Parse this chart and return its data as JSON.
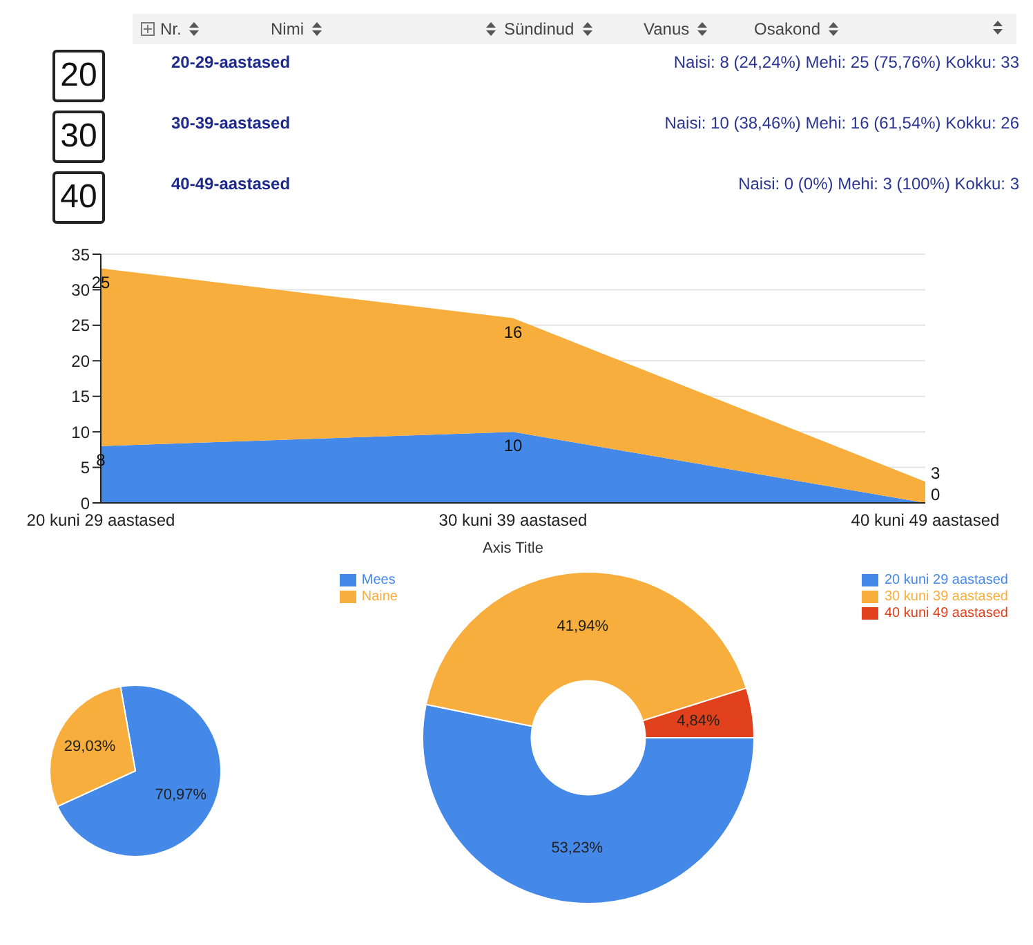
{
  "chart_data": [
    {
      "type": "other",
      "annotations": [
        "Nr.",
        "Nimi",
        "Sündinud",
        "Vanus",
        "Osakond",
        "20",
        "20-29-aastased",
        "Naisi: 8 (24,24%)  Mehi: 25 (75,76%)  Kokku: 33",
        "30",
        "30-39-aastased",
        "Naisi: 10 (38,46%)  Mehi: 16 (61,54%)  Kokku: 26",
        "40",
        "40-49-aastased",
        "Naisi: 0 (0%)  Mehi: 3 (100%)  Kokku: 3"
      ]
    },
    {
      "type": "area",
      "stacked": true,
      "categories": [
        "20 kuni 29 aastased",
        "30 kuni 39 aastased",
        "40 kuni 49 aastased"
      ],
      "xlabel": "Axis Title",
      "ylim": [
        0,
        35
      ],
      "yticks": [
        0,
        5,
        10,
        15,
        20,
        25,
        30,
        35
      ],
      "grid": "y",
      "data_labels": true,
      "series": [
        {
          "color": "#4488e8",
          "values": [
            8,
            10,
            0
          ]
        },
        {
          "color": "#f7ae3c",
          "values": [
            25,
            16,
            3
          ]
        }
      ]
    },
    {
      "type": "pie",
      "categories": [
        "Mees",
        "Naine"
      ],
      "values": [
        70.97,
        29.03
      ],
      "colors": [
        "#4488e8",
        "#f7ae3c"
      ],
      "value_labels": [
        "70,97%",
        "29,03%"
      ],
      "legend": "top right"
    },
    {
      "type": "donut",
      "categories": [
        "20 kuni 29 aastased",
        "30 kuni 39 aastased",
        "40 kuni 49 aastased"
      ],
      "values": [
        53.23,
        41.94,
        4.84
      ],
      "colors": [
        "#4488e8",
        "#f7ae3c",
        "#e0401c"
      ],
      "value_labels": [
        "53,23%",
        "41,94%",
        "4,84%"
      ],
      "legend": "top right"
    }
  ]
}
